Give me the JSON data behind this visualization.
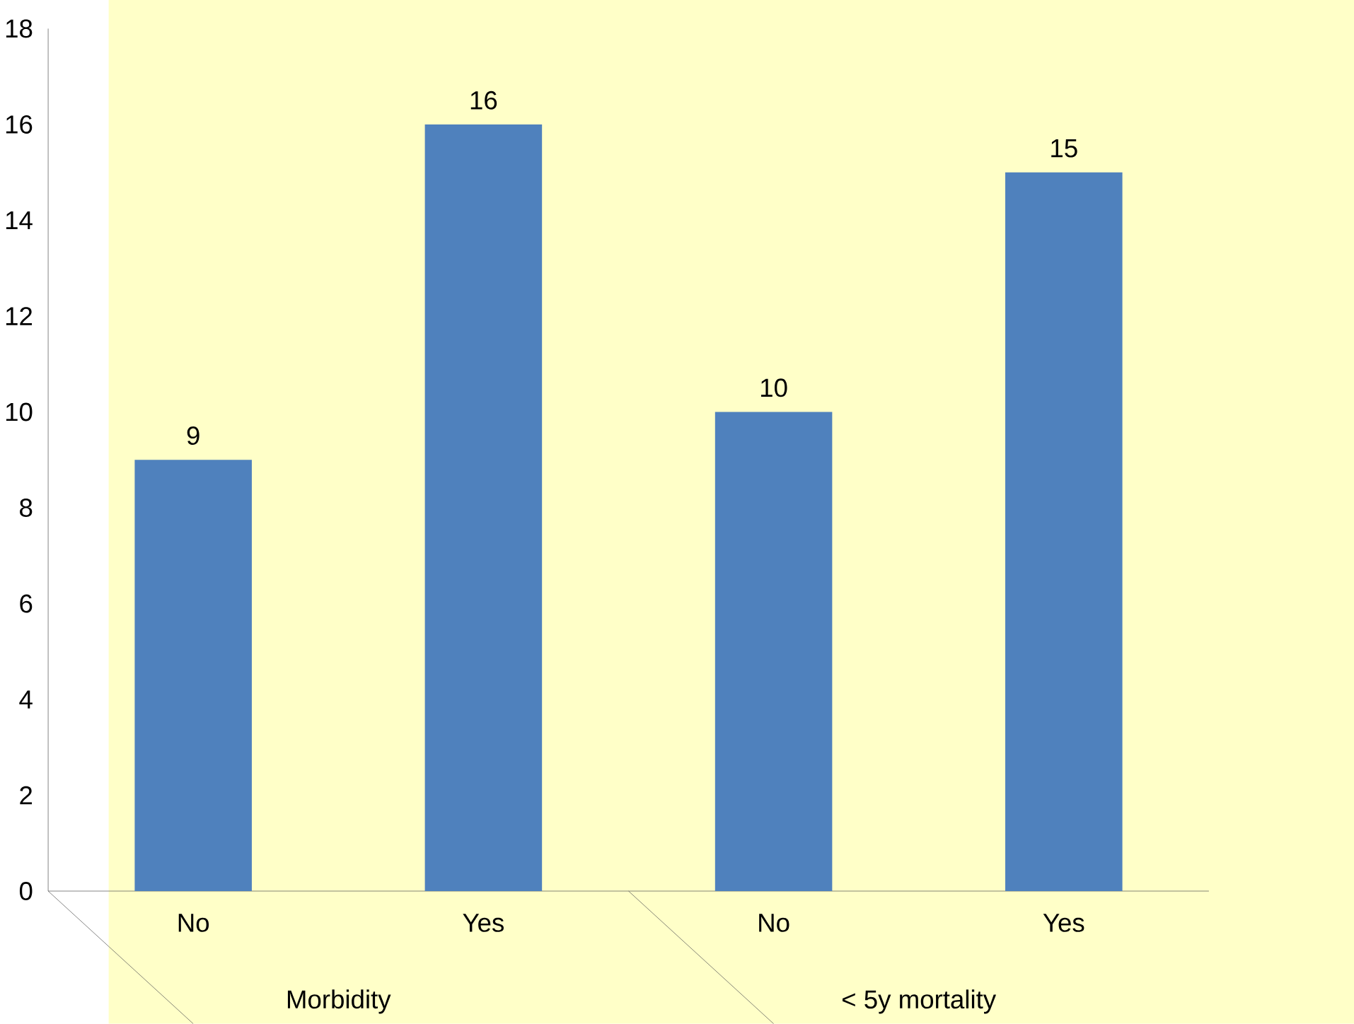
{
  "chart_data": {
    "type": "bar",
    "categories": [
      "No",
      "Yes",
      "No",
      "Yes"
    ],
    "values": [
      9,
      16,
      10,
      15
    ],
    "color": "#4f81bd",
    "ylim": [
      0,
      18
    ],
    "yticks": [
      0,
      2,
      4,
      6,
      8,
      10,
      12,
      14,
      16,
      18
    ],
    "grid": false,
    "data_labels": true,
    "annotations": [
      "Morbidity",
      "< 5y mortality"
    ]
  }
}
